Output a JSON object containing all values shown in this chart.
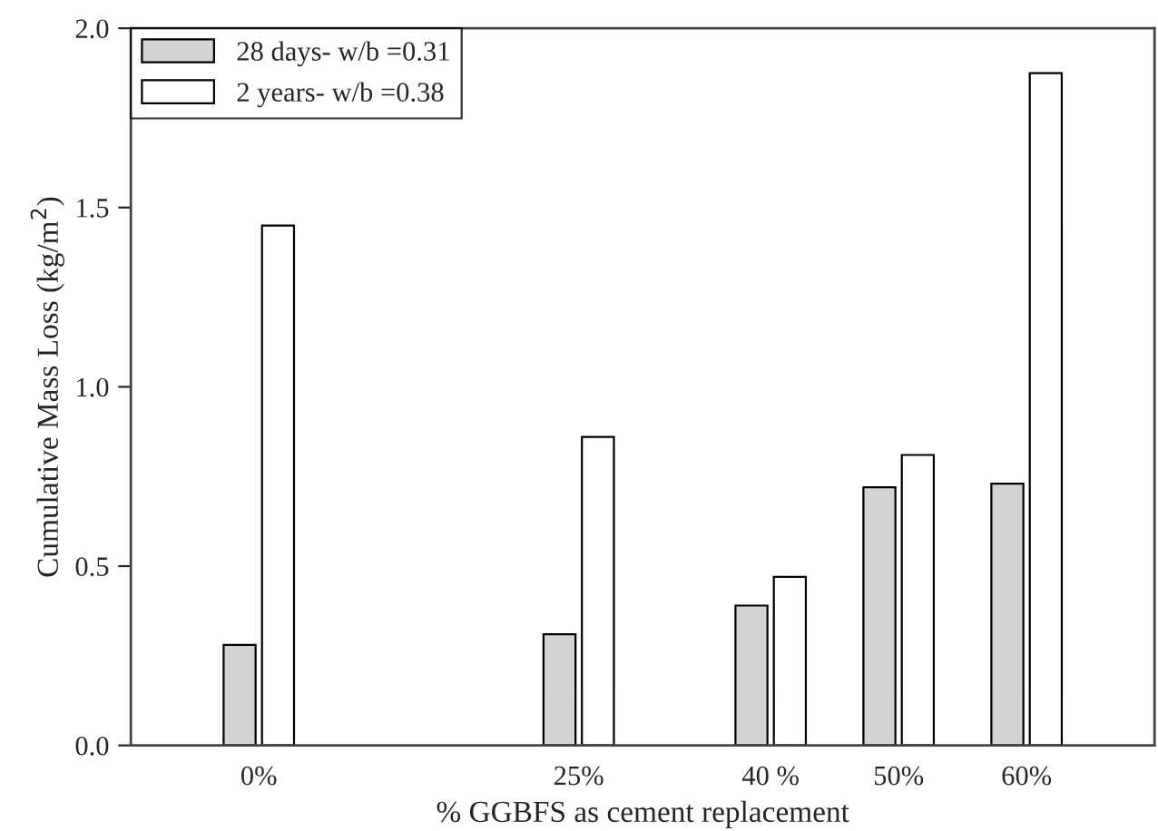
{
  "chart_data": {
    "type": "bar",
    "xlabel": "% GGBFS as cement replacement",
    "ylabel": "Cumulative Mass Loss (kg/m$^{2}$)",
    "x": [
      0,
      25,
      40,
      50,
      60
    ],
    "series": [
      {
        "name": "28 days- w/b =0.31",
        "color": "#d3d3d3",
        "values": [
          0.28,
          0.31,
          0.39,
          0.72,
          0.73
        ]
      },
      {
        "name": "2 years- w/b =0.38",
        "color": "#ffffff",
        "values": [
          1.45,
          0.86,
          0.47,
          0.81,
          1.875
        ]
      }
    ],
    "xlim": [
      -10,
      70
    ],
    "xticks": [
      {
        "value": 0,
        "label": "0%"
      },
      {
        "value": 25,
        "label": "25%"
      },
      {
        "value": 40,
        "label": "40 %"
      },
      {
        "value": 50,
        "label": "50%"
      },
      {
        "value": 60,
        "label": "60%"
      }
    ],
    "ylim": [
      0,
      2.0
    ],
    "yticks": [
      {
        "value": 0,
        "label": "0.0"
      },
      {
        "value": 0.5,
        "label": "0.5"
      },
      {
        "value": 1.0,
        "label": "1.0"
      },
      {
        "value": 1.5,
        "label": "1.5"
      },
      {
        "value": 2.0,
        "label": "2.0"
      }
    ],
    "grid": false,
    "legend": "top left"
  }
}
